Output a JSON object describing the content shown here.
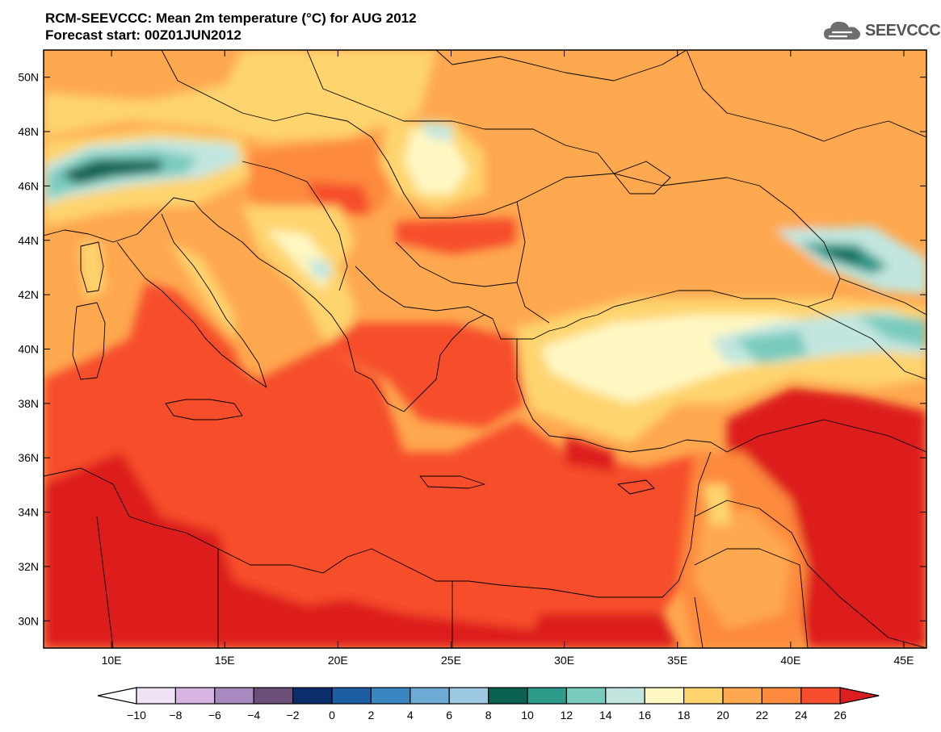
{
  "header": {
    "title_line1": "RCM-SEEVCCC: Mean 2m temperature (°C) for AUG 2012",
    "title_line2": "Forecast start: 00Z01JUN2012"
  },
  "logo": {
    "text": "SEEVCCC",
    "icon": "cloud-icon"
  },
  "map": {
    "lon_range": [
      7,
      46
    ],
    "lat_range": [
      29,
      51
    ],
    "lat_ticks": [
      {
        "value": 50,
        "label": "50N"
      },
      {
        "value": 48,
        "label": "48N"
      },
      {
        "value": 46,
        "label": "46N"
      },
      {
        "value": 44,
        "label": "44N"
      },
      {
        "value": 42,
        "label": "42N"
      },
      {
        "value": 40,
        "label": "40N"
      },
      {
        "value": 38,
        "label": "38N"
      },
      {
        "value": 36,
        "label": "36N"
      },
      {
        "value": 34,
        "label": "34N"
      },
      {
        "value": 32,
        "label": "32N"
      },
      {
        "value": 30,
        "label": "30N"
      }
    ],
    "lon_ticks": [
      {
        "value": 10,
        "label": "10E"
      },
      {
        "value": 15,
        "label": "15E"
      },
      {
        "value": 20,
        "label": "20E"
      },
      {
        "value": 25,
        "label": "25E"
      },
      {
        "value": 30,
        "label": "30E"
      },
      {
        "value": 35,
        "label": "35E"
      },
      {
        "value": 40,
        "label": "40E"
      },
      {
        "value": 45,
        "label": "45E"
      }
    ]
  },
  "colorbar": {
    "labels": [
      "-10",
      "-8",
      "-6",
      "-4",
      "-2",
      "0",
      "2",
      "4",
      "6",
      "8",
      "10",
      "12",
      "14",
      "16",
      "18",
      "20",
      "22",
      "24",
      "26"
    ],
    "colors": [
      "#ffffff",
      "#efe3f5",
      "#d8b4e3",
      "#a88ac0",
      "#6b4f78",
      "#0b2d6b",
      "#1d5ea3",
      "#3a86c0",
      "#6eaad4",
      "#9dc8e2",
      "#0b6150",
      "#2e9a8a",
      "#79cbbe",
      "#c2e6df",
      "#fff7c2",
      "#fed46e",
      "#fea84f",
      "#fd8a3e",
      "#f64d2c",
      "#dd1e1e"
    ]
  }
}
